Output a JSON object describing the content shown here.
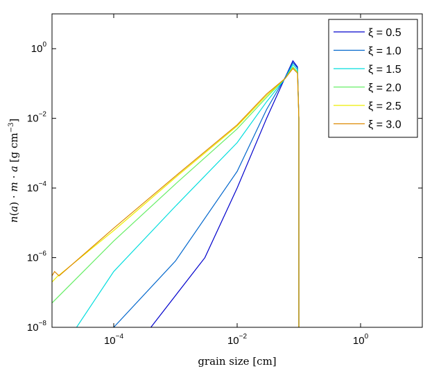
{
  "chart_data": {
    "type": "line",
    "xscale": "log",
    "yscale": "log",
    "xlim": [
      1e-05,
      10
    ],
    "ylim": [
      1e-08,
      10
    ],
    "xticks": [
      {
        "value": 0.0001,
        "base": "10",
        "exp": "−4"
      },
      {
        "value": 0.01,
        "base": "10",
        "exp": "−2"
      },
      {
        "value": 1,
        "base": "10",
        "exp": "0"
      }
    ],
    "yticks": [
      {
        "value": 1e-08,
        "base": "10",
        "exp": "−8"
      },
      {
        "value": 1e-06,
        "base": "10",
        "exp": "−6"
      },
      {
        "value": 0.0001,
        "base": "10",
        "exp": "−4"
      },
      {
        "value": 0.01,
        "base": "10",
        "exp": "−2"
      },
      {
        "value": 1,
        "base": "10",
        "exp": "0"
      }
    ],
    "xlabel": "grain size [cm]",
    "ylabel": "n(a) · m · a [g cm−3]",
    "legend_position": "top-right",
    "grid": false,
    "series": [
      {
        "name": "ξ = 0.5",
        "color": "#0000cc",
        "x": [
          0.0004,
          0.003,
          0.01,
          0.03,
          0.06,
          0.08,
          0.095,
          0.1,
          0.1
        ],
        "y": [
          1e-08,
          1e-06,
          0.0001,
          0.01,
          0.15,
          0.45,
          0.3,
          0.01,
          1e-08
        ]
      },
      {
        "name": "ξ = 1.0",
        "color": "#0066cc",
        "x": [
          0.0001,
          0.001,
          0.01,
          0.03,
          0.06,
          0.08,
          0.095,
          0.1,
          0.1
        ],
        "y": [
          1e-08,
          8e-07,
          0.0003,
          0.018,
          0.15,
          0.4,
          0.28,
          0.01,
          1e-08
        ]
      },
      {
        "name": "ξ = 1.5",
        "color": "#00dddd",
        "x": [
          2.5e-05,
          0.0001,
          0.001,
          0.01,
          0.03,
          0.06,
          0.08,
          0.095,
          0.1,
          0.1
        ],
        "y": [
          1e-08,
          4e-07,
          3e-05,
          0.002,
          0.03,
          0.14,
          0.35,
          0.25,
          0.01,
          1e-08
        ]
      },
      {
        "name": "ξ = 2.0",
        "color": "#66ee66",
        "x": [
          1e-05,
          0.0001,
          0.001,
          0.01,
          0.03,
          0.06,
          0.08,
          0.095,
          0.1,
          0.1
        ],
        "y": [
          5e-08,
          3e-06,
          0.00013,
          0.005,
          0.04,
          0.14,
          0.3,
          0.22,
          0.01,
          1e-08
        ]
      },
      {
        "name": "ξ = 2.5",
        "color": "#eeee00",
        "x": [
          1e-05,
          1.2e-05,
          0.0001,
          0.001,
          0.01,
          0.03,
          0.06,
          0.08,
          0.095,
          0.1,
          0.1
        ],
        "y": [
          2e-07,
          2.8e-07,
          6e-06,
          0.0002,
          0.006,
          0.045,
          0.14,
          0.28,
          0.2,
          0.01,
          1e-08
        ]
      },
      {
        "name": "ξ = 3.0",
        "color": "#dd8800",
        "x": [
          1e-05,
          1.1e-05,
          1.3e-05,
          0.0001,
          0.001,
          0.01,
          0.03,
          0.06,
          0.08,
          0.095,
          0.1,
          0.1
        ],
        "y": [
          3e-07,
          4e-07,
          3e-07,
          7e-06,
          0.00022,
          0.0065,
          0.05,
          0.14,
          0.27,
          0.2,
          0.01,
          1e-08
        ]
      }
    ]
  }
}
